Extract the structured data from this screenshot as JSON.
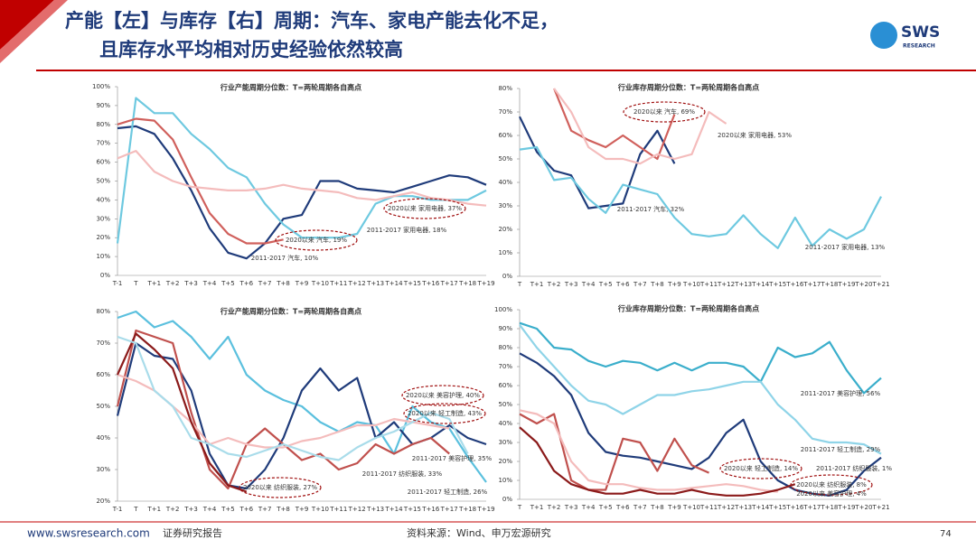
{
  "header": {
    "title_lines": [
      "产能【左】与库存【右】周期：汽车、家电产能去化不足，",
      "且库存水平均相对历史经验依然较高"
    ],
    "logo": "SWS",
    "logo_sub": "RESEARCH"
  },
  "footer": {
    "site": "www.swsresearch.com",
    "report": "证券研究报告",
    "source": "资料来源：Wind、申万宏源研究",
    "page": "74"
  },
  "chart_data": [
    {
      "type": "line",
      "title": "行业产能周期分位数：T=两轮周期各自高点",
      "categories": [
        "T-1",
        "T",
        "T+1",
        "T+2",
        "T+3",
        "T+4",
        "T+5",
        "T+6",
        "T+7",
        "T+8",
        "T+9",
        "T+10",
        "T+11",
        "T+12",
        "T+13",
        "T+14",
        "T+15",
        "T+16",
        "T+17",
        "T+18",
        "T+19"
      ],
      "ylim": [
        0,
        100
      ],
      "yticks": [
        {
          "value": 0,
          "label": "0%"
        },
        {
          "value": 10,
          "label": "10%"
        },
        {
          "value": 20,
          "label": "20%"
        },
        {
          "value": 30,
          "label": "30%"
        },
        {
          "value": 40,
          "label": "40%"
        },
        {
          "value": 50,
          "label": "50%"
        },
        {
          "value": 60,
          "label": "60%"
        },
        {
          "value": 70,
          "label": "70%"
        },
        {
          "value": 80,
          "label": "80%"
        },
        {
          "value": 90,
          "label": "90%"
        },
        {
          "value": 100,
          "label": "100%"
        }
      ],
      "series": [
        {
          "color": "#1f3b7a",
          "values": [
            78,
            79,
            75,
            62,
            45,
            25,
            12,
            9,
            17,
            30,
            32,
            50,
            50,
            46,
            45,
            44,
            47,
            50,
            53,
            52,
            48
          ]
        },
        {
          "color": "#6ec9e0",
          "values": [
            17,
            94,
            86,
            86,
            75,
            67,
            57,
            52,
            38,
            27,
            20,
            20,
            20,
            22,
            38,
            42,
            42,
            40,
            40,
            40,
            45
          ]
        },
        {
          "color": "#d0605c",
          "values": [
            80,
            83,
            82,
            72,
            52,
            33,
            22,
            17,
            17,
            19,
            null,
            null,
            null,
            null,
            null,
            null,
            null,
            null,
            null,
            null,
            null
          ]
        },
        {
          "color": "#f4bcbc",
          "values": [
            62,
            66,
            55,
            50,
            47,
            46,
            45,
            45,
            46,
            48,
            46,
            45,
            44,
            41,
            40,
            42,
            44,
            41,
            40,
            38,
            37
          ]
        }
      ],
      "annotations": [
        "2020以来 家用电器, 37%",
        "2011-2017 家用电器, 18%",
        "2020以来 汽车, 19%",
        "2011-2017 汽车, 10%"
      ]
    },
    {
      "type": "line",
      "title": "行业库存周期分位数：T=两轮周期各自高点",
      "categories": [
        "T",
        "T+1",
        "T+2",
        "T+3",
        "T+4",
        "T+5",
        "T+6",
        "T+7",
        "T+8",
        "T+9",
        "T+10",
        "T+11",
        "T+12",
        "T+13",
        "T+14",
        "T+15",
        "T+16",
        "T+17",
        "T+18",
        "T+19",
        "T+20",
        "T+21"
      ],
      "ylim": [
        0,
        80
      ],
      "yticks": [
        {
          "value": 0,
          "label": "0%"
        },
        {
          "value": 10,
          "label": "10%"
        },
        {
          "value": 20,
          "label": "20%"
        },
        {
          "value": 30,
          "label": "30%"
        },
        {
          "value": 40,
          "label": "40%"
        },
        {
          "value": 50,
          "label": "50%"
        },
        {
          "value": 60,
          "label": "60%"
        },
        {
          "value": 70,
          "label": "70%"
        },
        {
          "value": 80,
          "label": "80%"
        }
      ],
      "series": [
        {
          "color": "#1f3b7a",
          "values": [
            68,
            53,
            45,
            43,
            29,
            30,
            31,
            52,
            62,
            48,
            null,
            null,
            null,
            null,
            null,
            null,
            null,
            null,
            null,
            null,
            null,
            null
          ]
        },
        {
          "color": "#6ec9e0",
          "values": [
            54,
            55,
            41,
            42,
            33,
            27,
            39,
            37,
            35,
            25,
            18,
            17,
            18,
            26,
            18,
            12,
            25,
            13,
            20,
            16,
            20,
            34
          ]
        },
        {
          "color": "#d0605c",
          "values": [
            null,
            null,
            80,
            62,
            58,
            55,
            60,
            55,
            50,
            69,
            null,
            null,
            null,
            null,
            null,
            null,
            null,
            null,
            null,
            null,
            null,
            null
          ]
        },
        {
          "color": "#f4bcbc",
          "values": [
            null,
            null,
            80,
            70,
            55,
            50,
            50,
            48,
            52,
            50,
            52,
            70,
            65,
            null,
            null,
            null,
            null,
            null,
            null,
            null,
            null,
            null
          ]
        }
      ],
      "annotations": [
        "2020以来 汽车, 69%",
        "2020以来 家用电器, 53%",
        "2011-2017 汽车, 32%",
        "2011-2017 家用电器, 13%"
      ]
    },
    {
      "type": "line",
      "title": "行业产能周期分位数：T=两轮周期各自高点",
      "categories": [
        "T-1",
        "T",
        "T+1",
        "T+2",
        "T+3",
        "T+4",
        "T+5",
        "T+6",
        "T+7",
        "T+8",
        "T+9",
        "T+10",
        "T+11",
        "T+12",
        "T+13",
        "T+14",
        "T+15",
        "T+16",
        "T+17",
        "T+18",
        "T+19"
      ],
      "ylim": [
        20,
        80
      ],
      "yticks": [
        {
          "value": 20,
          "label": "20%"
        },
        {
          "value": 30,
          "label": "30%"
        },
        {
          "value": 40,
          "label": "40%"
        },
        {
          "value": 50,
          "label": "50%"
        },
        {
          "value": 60,
          "label": "60%"
        },
        {
          "value": 70,
          "label": "70%"
        },
        {
          "value": 80,
          "label": "80%"
        }
      ],
      "series": [
        {
          "color": "#5bc0de",
          "values": [
            78,
            80,
            75,
            77,
            72,
            65,
            72,
            60,
            55,
            52,
            50,
            45,
            42,
            45,
            44,
            35,
            50,
            45,
            43,
            34,
            26
          ]
        },
        {
          "color": "#1f3b7a",
          "values": [
            47,
            70,
            66,
            65,
            55,
            35,
            25,
            24,
            30,
            40,
            55,
            62,
            55,
            59,
            40,
            45,
            38,
            40,
            44,
            40,
            38
          ]
        },
        {
          "color": "#c0504d",
          "values": [
            50,
            74,
            72,
            70,
            48,
            30,
            24,
            38,
            43,
            38,
            33,
            35,
            30,
            32,
            38,
            35,
            38,
            40,
            35,
            null,
            null
          ]
        },
        {
          "color": "#f4bcbc",
          "values": [
            60,
            58,
            55,
            50,
            45,
            38,
            40,
            38,
            37,
            37,
            39,
            40,
            42,
            44,
            44,
            46,
            45,
            44,
            43,
            null,
            null
          ]
        },
        {
          "color": "#8b1a1a",
          "values": [
            60,
            73,
            68,
            62,
            45,
            32,
            25,
            23,
            null,
            null,
            null,
            null,
            null,
            null,
            null,
            null,
            null,
            null,
            null,
            null,
            null
          ]
        },
        {
          "color": "#a9dcea",
          "values": [
            72,
            70,
            55,
            50,
            40,
            38,
            35,
            34,
            36,
            38,
            36,
            34,
            33,
            37,
            40,
            42,
            45,
            48,
            46,
            35,
            null
          ]
        }
      ],
      "annotations": [
        "2020以来 美容护理, 40%",
        "2020以来 轻工制造, 43%",
        "2011-2017 美容护理, 35%",
        "2011-2017 纺织服装, 33%",
        "2011-2017 轻工制造, 26%",
        "2020以来 纺织服装, 27%"
      ]
    },
    {
      "type": "line",
      "title": "行业库存周期分位数：T=两轮周期各自高点",
      "categories": [
        "T",
        "T+1",
        "T+2",
        "T+3",
        "T+4",
        "T+5",
        "T+6",
        "T+7",
        "T+8",
        "T+9",
        "T+10",
        "T+11",
        "T+12",
        "T+13",
        "T+14",
        "T+15",
        "T+16",
        "T+17",
        "T+18",
        "T+19",
        "T+20",
        "T+21"
      ],
      "ylim": [
        0,
        100
      ],
      "yticks": [
        {
          "value": 0,
          "label": "0%"
        },
        {
          "value": 10,
          "label": "10%"
        },
        {
          "value": 20,
          "label": "20%"
        },
        {
          "value": 30,
          "label": "30%"
        },
        {
          "value": 40,
          "label": "40%"
        },
        {
          "value": 50,
          "label": "50%"
        },
        {
          "value": 60,
          "label": "60%"
        },
        {
          "value": 70,
          "label": "70%"
        },
        {
          "value": 80,
          "label": "80%"
        },
        {
          "value": 90,
          "label": "90%"
        },
        {
          "value": 100,
          "label": "100%"
        }
      ],
      "series": [
        {
          "color": "#3aaecb",
          "values": [
            93,
            90,
            80,
            79,
            73,
            70,
            73,
            72,
            68,
            72,
            68,
            72,
            72,
            70,
            62,
            80,
            75,
            77,
            83,
            68,
            56,
            64
          ]
        },
        {
          "color": "#8fd4e8",
          "values": [
            92,
            80,
            70,
            60,
            52,
            50,
            45,
            50,
            55,
            55,
            57,
            58,
            60,
            62,
            62,
            50,
            42,
            32,
            30,
            30,
            29,
            24
          ]
        },
        {
          "color": "#1f3b7a",
          "values": [
            77,
            72,
            65,
            55,
            35,
            25,
            23,
            22,
            20,
            18,
            16,
            22,
            35,
            42,
            20,
            10,
            5,
            3,
            2,
            5,
            15,
            22
          ]
        },
        {
          "color": "#c0504d",
          "values": [
            45,
            40,
            45,
            10,
            5,
            5,
            32,
            30,
            15,
            32,
            18,
            14,
            null,
            null,
            null,
            null,
            null,
            null,
            null,
            null,
            null,
            null
          ]
        },
        {
          "color": "#f4bcbc",
          "values": [
            47,
            45,
            40,
            20,
            10,
            8,
            8,
            6,
            5,
            5,
            6,
            7,
            8,
            7,
            5,
            4,
            null,
            null,
            null,
            null,
            null,
            null
          ]
        },
        {
          "color": "#8b1a1a",
          "values": [
            38,
            30,
            15,
            8,
            5,
            3,
            3,
            5,
            3,
            3,
            5,
            3,
            2,
            2,
            3,
            5,
            8,
            null,
            null,
            null,
            null,
            null
          ]
        }
      ],
      "annotations": [
        "2011-2017 美容护理, 56%",
        "2011-2017 轻工制造, 29%",
        "2020以来 轻工制造, 14%",
        "2011-2017 纺织服装, 1%",
        "2020以来 纺织服装, 8%",
        "2020以来 美容护理, 4%"
      ]
    }
  ]
}
